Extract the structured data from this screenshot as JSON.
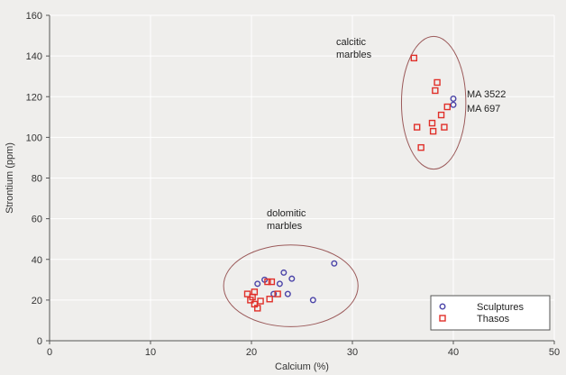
{
  "chart_data": {
    "type": "scatter",
    "xlabel": "Calcium (%)",
    "ylabel": "Strontium (ppm)",
    "xlim": [
      0,
      50
    ],
    "ylim": [
      0,
      160
    ],
    "x_ticks": [
      "0",
      "10",
      "20",
      "30",
      "40",
      "50"
    ],
    "y_ticks": [
      "0",
      "20",
      "40",
      "60",
      "80",
      "100",
      "120",
      "140",
      "160"
    ],
    "legend_position": "bottom-right",
    "series": [
      {
        "name": "Sculptures",
        "marker": "circle",
        "color": "#4b44a8",
        "points": [
          [
            20.6,
            28
          ],
          [
            21.3,
            30
          ],
          [
            22.2,
            23
          ],
          [
            22.8,
            28
          ],
          [
            23.2,
            33.5
          ],
          [
            23.6,
            23
          ],
          [
            24.0,
            30.5
          ],
          [
            26.1,
            20
          ],
          [
            28.2,
            38
          ],
          [
            40.0,
            119
          ],
          [
            40.0,
            116
          ]
        ]
      },
      {
        "name": "Thasos",
        "marker": "square",
        "color": "#e0302a",
        "points": [
          [
            19.6,
            23
          ],
          [
            19.9,
            20
          ],
          [
            20.1,
            21.5
          ],
          [
            20.3,
            24
          ],
          [
            20.3,
            18
          ],
          [
            20.6,
            16
          ],
          [
            20.9,
            19.5
          ],
          [
            21.6,
            29
          ],
          [
            21.8,
            20.5
          ],
          [
            22.0,
            29
          ],
          [
            22.6,
            23
          ],
          [
            36.1,
            139
          ],
          [
            36.4,
            105
          ],
          [
            36.8,
            95
          ],
          [
            37.9,
            107
          ],
          [
            38.0,
            103
          ],
          [
            38.2,
            123
          ],
          [
            38.4,
            127
          ],
          [
            38.8,
            111
          ],
          [
            39.1,
            105
          ],
          [
            39.4,
            115
          ]
        ]
      }
    ],
    "annotations": {
      "calcitic": [
        "calcitic",
        "marbles"
      ],
      "dolomitic": [
        "dolomitic",
        "marbles"
      ],
      "ma3522": "MA 3522",
      "ma697": "MA 697"
    }
  },
  "colors": {
    "ellipse": "#9b5a5a",
    "axis": "#555555",
    "grid": "#ffffff",
    "background": "#efeeec"
  }
}
